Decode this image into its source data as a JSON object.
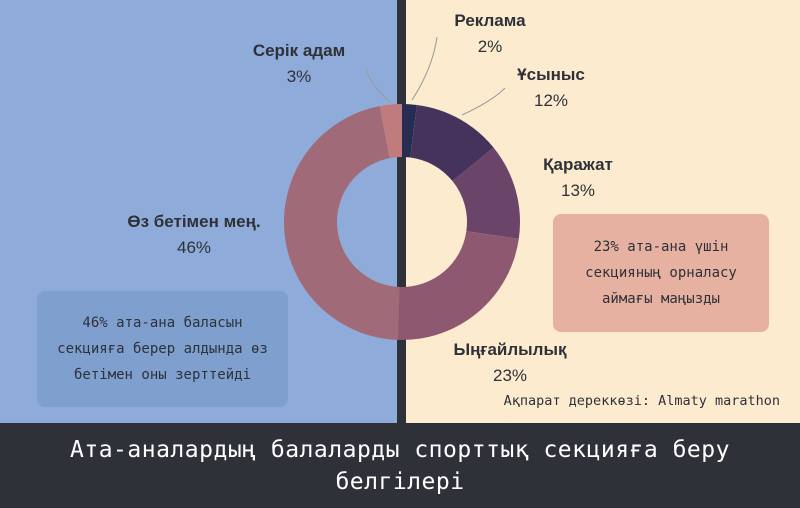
{
  "title": "Ата-аналардың балаларды спорттық секцияға беру белгілері",
  "source": "Ақпарат дереккөзі: Almaty marathon",
  "notes": {
    "left": "46% ата-ана баласын секцияға берер алдында өз бетімен оны зерттейді",
    "right": "23% ата-ана үшін секцияның орналасу аймағы маңызды"
  },
  "colors": {
    "left_panel": "#8fabd9",
    "right_panel": "#fdebd0",
    "divider": "#2e3238",
    "footer": "#2e3238"
  },
  "chart_data": {
    "type": "pie",
    "title": "",
    "categories": [
      "Реклама",
      "Ұсыныс",
      "Қаражат",
      "Ыңғайлылық",
      "Өз бетімен мең.",
      "Серік адам"
    ],
    "values": [
      2,
      12,
      13,
      23,
      46,
      3
    ],
    "value_labels": [
      "2%",
      "12%",
      "13%",
      "23%",
      "46%",
      "3%"
    ],
    "colors": [
      "#272d52",
      "#45335e",
      "#6b4469",
      "#8e5870",
      "#a06a78",
      "#c07c7c"
    ],
    "donut": true
  }
}
